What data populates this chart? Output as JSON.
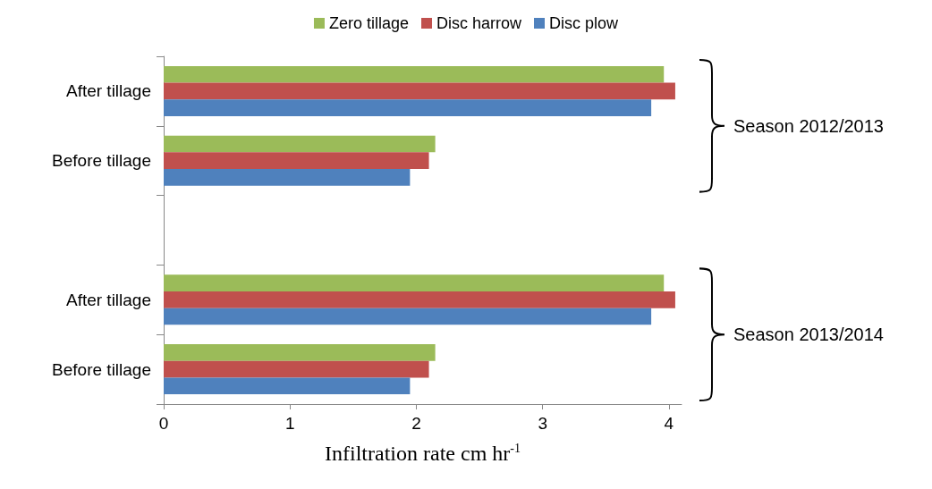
{
  "chart_data": {
    "type": "bar",
    "orientation": "horizontal",
    "xlabel": "Infiltration rate cm hr$^{-1}$",
    "categories": [
      "After tillage",
      "Before tillage",
      null,
      "After tillage",
      "Before tillage"
    ],
    "series": [
      {
        "name": "Zero tillage",
        "color": "#9bbb59",
        "values": [
          3.96,
          2.15,
          null,
          3.96,
          2.15
        ]
      },
      {
        "name": "Disc harrow",
        "color": "#c0504d",
        "values": [
          4.05,
          2.1,
          null,
          4.05,
          2.1
        ]
      },
      {
        "name": "Disc plow",
        "color": "#4f81bd",
        "values": [
          3.86,
          1.95,
          null,
          3.86,
          1.95
        ]
      }
    ],
    "xlim": [
      0,
      4.1
    ],
    "xticks": [
      0,
      1,
      2,
      3,
      4
    ],
    "grid": false,
    "legend": "top",
    "annotations": [
      "Season 2012/2013",
      "Season 2013/2014"
    ]
  }
}
